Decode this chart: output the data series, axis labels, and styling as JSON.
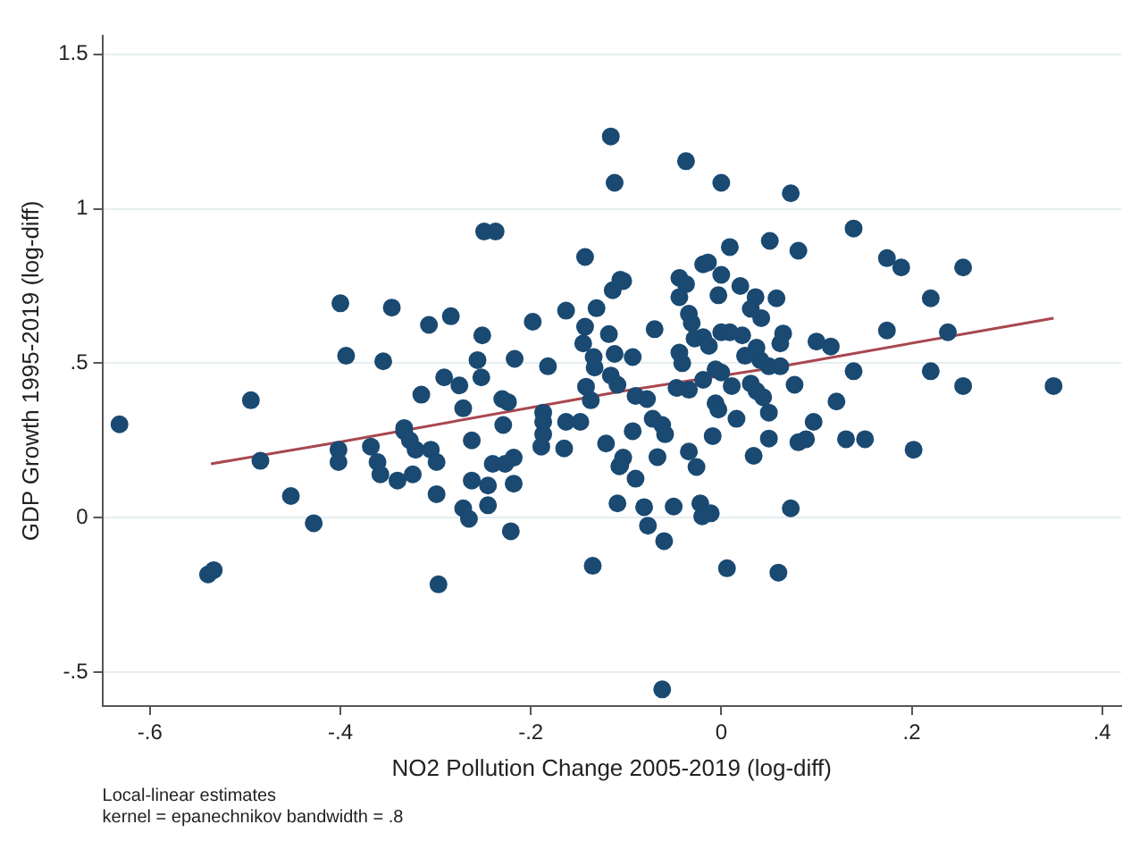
{
  "chart_data": {
    "type": "scatter",
    "xlabel": "NO2 Pollution Change 2005-2019 (log-diff)",
    "ylabel": "GDP Growth 1995-2019 (log-diff)",
    "xlim": [
      -0.65,
      0.42
    ],
    "ylim": [
      -0.61,
      1.56
    ],
    "xticks": [
      {
        "value": -0.6,
        "label": "-.6"
      },
      {
        "value": -0.4,
        "label": "-.4"
      },
      {
        "value": -0.2,
        "label": "-.2"
      },
      0,
      {
        "value": 0.2,
        "label": ".2"
      },
      {
        "value": 0.4,
        "label": ".4"
      }
    ],
    "yticks": [
      {
        "value": -0.5,
        "label": "-.5"
      },
      0,
      {
        "value": 0.5,
        "label": ".5"
      },
      1,
      1.5
    ],
    "grid": "y",
    "legend": false,
    "marker": "circle",
    "annotations": [
      "Local-linear estimates",
      "kernel = epanechnikov bandwidth = .8"
    ],
    "series": [
      {
        "type": "scatter",
        "color": "#1a4a72",
        "x": [
          -0.116,
          -0.112,
          -0.249,
          -0.237,
          -0.143,
          -0.114,
          -0.106,
          -0.4,
          -0.346,
          -0.307,
          -0.284,
          -0.198,
          -0.163,
          -0.131,
          -0.251,
          -0.143,
          -0.118,
          -0.394,
          -0.355,
          -0.256,
          -0.217,
          -0.182,
          -0.145,
          -0.134,
          -0.133,
          -0.112,
          -0.291,
          -0.275,
          -0.252,
          -0.315,
          -0.23,
          -0.224,
          -0.271,
          -0.142,
          -0.137,
          -0.116,
          -0.109,
          -0.187,
          -0.187,
          -0.229,
          -0.163,
          -0.148,
          -0.333,
          -0.494,
          -0.632,
          -0.187,
          -0.189,
          -0.165,
          -0.121,
          -0.107,
          -0.109,
          -0.484,
          -0.402,
          -0.402,
          -0.368,
          -0.361,
          -0.358,
          -0.333,
          -0.327,
          -0.321,
          -0.305,
          -0.299,
          -0.34,
          -0.324,
          -0.262,
          -0.299,
          -0.262,
          -0.245,
          -0.24,
          -0.227,
          -0.218,
          -0.218,
          -0.245,
          -0.271,
          -0.265,
          -0.221,
          -0.452,
          -0.428,
          -0.539,
          -0.533,
          -0.297,
          -0.135,
          -0.037,
          0.0,
          0.073,
          0.139,
          0.009,
          0.051,
          0.081,
          0.174,
          0.189,
          0.254,
          -0.019,
          -0.014,
          0.0,
          -0.044,
          -0.037,
          -0.103,
          0.02,
          -0.003,
          -0.044,
          0.036,
          0.058,
          0.031,
          0.042,
          -0.034,
          -0.031,
          0.22,
          -0.07,
          -0.028,
          -0.019,
          0.0,
          0.009,
          0.022,
          0.065,
          0.062,
          0.174,
          0.238,
          -0.093,
          -0.044,
          -0.041,
          -0.013,
          0.025,
          0.037,
          0.041,
          0.05,
          0.062,
          0.1,
          0.115,
          0.139,
          0.22,
          0.254,
          0.349,
          -0.047,
          -0.034,
          -0.019,
          0.0,
          -0.006,
          0.011,
          0.031,
          0.037,
          0.044,
          0.077,
          0.121,
          -0.09,
          -0.078,
          -0.006,
          -0.003,
          0.016,
          0.05,
          0.097,
          -0.072,
          -0.062,
          -0.093,
          -0.059,
          -0.103,
          -0.106,
          -0.09,
          -0.067,
          -0.034,
          -0.026,
          -0.009,
          0.034,
          0.05,
          0.081,
          0.089,
          0.131,
          0.151,
          0.202,
          -0.081,
          -0.077,
          -0.06,
          -0.05,
          -0.022,
          -0.02,
          -0.011,
          0.073,
          0.006,
          0.06,
          -0.062
        ],
        "values": [
          1.234,
          1.084,
          0.926,
          0.926,
          0.844,
          0.736,
          0.77,
          0.694,
          0.68,
          0.624,
          0.652,
          0.634,
          0.67,
          0.678,
          0.59,
          0.618,
          0.594,
          0.524,
          0.506,
          0.51,
          0.514,
          0.49,
          0.564,
          0.52,
          0.486,
          0.53,
          0.454,
          0.428,
          0.454,
          0.398,
          0.384,
          0.374,
          0.354,
          0.424,
          0.38,
          0.46,
          0.43,
          0.34,
          0.31,
          0.3,
          0.31,
          0.31,
          0.29,
          0.38,
          0.302,
          0.27,
          0.23,
          0.224,
          0.24,
          0.166,
          0.046,
          0.184,
          0.22,
          0.18,
          0.23,
          0.18,
          0.14,
          0.28,
          0.25,
          0.22,
          0.22,
          0.18,
          0.12,
          0.14,
          0.25,
          0.076,
          0.12,
          0.104,
          0.174,
          0.174,
          0.194,
          0.11,
          0.04,
          0.03,
          -0.004,
          -0.044,
          0.07,
          -0.018,
          -0.184,
          -0.17,
          -0.216,
          -0.156,
          1.154,
          1.084,
          1.05,
          0.936,
          0.876,
          0.896,
          0.864,
          0.84,
          0.81,
          0.81,
          0.82,
          0.826,
          0.786,
          0.776,
          0.756,
          0.766,
          0.75,
          0.72,
          0.714,
          0.714,
          0.71,
          0.676,
          0.646,
          0.66,
          0.63,
          0.71,
          0.61,
          0.58,
          0.584,
          0.6,
          0.6,
          0.59,
          0.596,
          0.564,
          0.606,
          0.6,
          0.52,
          0.534,
          0.5,
          0.556,
          0.524,
          0.55,
          0.51,
          0.49,
          0.49,
          0.57,
          0.554,
          0.474,
          0.474,
          0.426,
          0.426,
          0.42,
          0.414,
          0.446,
          0.47,
          0.48,
          0.426,
          0.434,
          0.41,
          0.39,
          0.43,
          0.376,
          0.394,
          0.384,
          0.37,
          0.35,
          0.32,
          0.34,
          0.31,
          0.32,
          0.3,
          0.28,
          0.27,
          0.194,
          0.17,
          0.126,
          0.196,
          0.214,
          0.164,
          0.264,
          0.2,
          0.256,
          0.244,
          0.254,
          0.254,
          0.254,
          0.22,
          0.034,
          -0.026,
          -0.076,
          0.036,
          0.046,
          0.004,
          0.014,
          0.03,
          -0.164,
          -0.178,
          -0.556
        ]
      },
      {
        "type": "line",
        "color": "#a8474f",
        "marker": "none",
        "x": [
          -0.536,
          -0.399,
          -0.103,
          0.056,
          0.349
        ],
        "values": [
          0.174,
          0.246,
          0.41,
          0.486,
          0.646
        ]
      }
    ]
  }
}
